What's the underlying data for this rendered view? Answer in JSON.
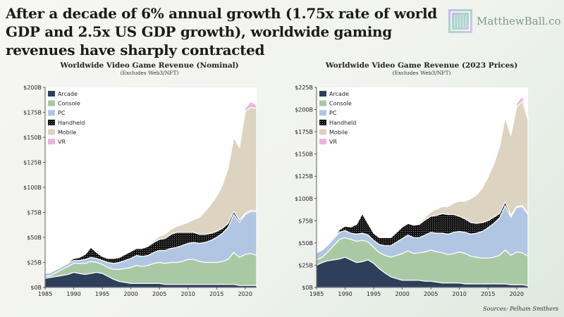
{
  "header": {
    "headline": "After a decade of 6% annual growth (1.75x rate of world GDP and 2.5x US GDP growth), worldwide gaming revenues have sharply contracted",
    "brand": "MatthewBall.co"
  },
  "source": "Sources: Pelham Smithers",
  "colors": {
    "Arcade": "#2e3f5c",
    "Console": "#a9c9a4",
    "PC": "#b1c6e2",
    "Handheld": "#111111",
    "Mobile": "#ddd3c1",
    "VR": "#e9b6e2"
  },
  "chart_data": [
    {
      "type": "area",
      "stacked": true,
      "title": "Worldwide Video Game Revenue (Nominal)",
      "subtitle": "(Excludes Web3/NFT)",
      "x": [
        1985,
        1986,
        1987,
        1988,
        1989,
        1990,
        1991,
        1992,
        1993,
        1994,
        1995,
        1996,
        1997,
        1998,
        1999,
        2000,
        2001,
        2002,
        2003,
        2004,
        2005,
        2006,
        2007,
        2008,
        2009,
        2010,
        2011,
        2012,
        2013,
        2014,
        2015,
        2016,
        2017,
        2018,
        2019,
        2020,
        2021,
        2022
      ],
      "xlim": [
        1985,
        2022
      ],
      "xticks": [
        "1985",
        "1990",
        "1995",
        "2000",
        "2005",
        "2010",
        "2015",
        "2020"
      ],
      "ylim": [
        0,
        200
      ],
      "yticks": [
        "$0B",
        "$25B",
        "$50B",
        "$75B",
        "$100B",
        "$125B",
        "$150B",
        "$175B",
        "$200B"
      ],
      "legend_position": "top-left",
      "series": [
        {
          "name": "Arcade",
          "values": [
            9,
            10,
            11,
            12,
            13,
            15,
            14,
            13,
            14,
            15,
            14,
            11,
            8,
            6,
            5,
            4,
            4,
            4,
            4,
            4,
            4,
            3,
            3,
            3,
            3,
            3,
            3,
            3,
            3,
            3,
            3,
            3,
            3,
            3,
            2,
            2,
            2,
            2
          ]
        },
        {
          "name": "Console",
          "values": [
            2,
            2,
            4,
            6,
            8,
            9,
            10,
            11,
            12,
            10,
            9,
            9,
            10,
            12,
            14,
            16,
            18,
            17,
            18,
            20,
            21,
            21,
            22,
            22,
            23,
            25,
            25,
            23,
            22,
            22,
            22,
            23,
            25,
            32,
            28,
            31,
            32,
            30
          ]
        },
        {
          "name": "PC",
          "values": [
            3,
            3,
            3,
            3,
            3,
            3,
            3,
            4,
            4,
            4,
            4,
            5,
            6,
            7,
            8,
            9,
            10,
            10,
            10,
            11,
            12,
            13,
            14,
            15,
            16,
            16,
            17,
            18,
            20,
            22,
            25,
            28,
            32,
            38,
            35,
            40,
            42,
            44
          ]
        },
        {
          "name": "Handheld",
          "values": [
            0,
            0,
            0,
            0,
            1,
            2,
            3,
            5,
            10,
            6,
            4,
            4,
            5,
            5,
            6,
            7,
            7,
            8,
            9,
            10,
            11,
            12,
            14,
            15,
            13,
            11,
            10,
            9,
            8,
            7,
            6,
            5,
            4,
            3,
            2,
            1,
            1,
            1
          ]
        },
        {
          "name": "Mobile",
          "values": [
            0,
            0,
            0,
            0,
            0,
            0,
            0,
            0,
            0,
            0,
            0,
            0,
            0,
            0,
            0,
            0,
            0,
            0,
            1,
            2,
            3,
            4,
            5,
            6,
            8,
            10,
            13,
            17,
            23,
            29,
            35,
            43,
            55,
            74,
            73,
            102,
            103,
            102
          ]
        },
        {
          "name": "VR",
          "values": [
            0,
            0,
            0,
            0,
            0,
            0,
            0,
            0,
            0,
            0,
            0,
            0,
            0,
            0,
            0,
            0,
            0,
            0,
            0,
            0,
            0,
            0,
            0,
            0,
            0,
            0,
            0,
            0,
            0,
            0,
            0,
            0,
            1,
            1,
            1,
            3,
            6,
            3
          ]
        }
      ]
    },
    {
      "type": "area",
      "stacked": true,
      "title": "Worldwide Video Game Revenue (2023 Prices)",
      "subtitle": "(Excludes Web3/NFT)",
      "x": [
        1985,
        1986,
        1987,
        1988,
        1989,
        1990,
        1991,
        1992,
        1993,
        1994,
        1995,
        1996,
        1997,
        1998,
        1999,
        2000,
        2001,
        2002,
        2003,
        2004,
        2005,
        2006,
        2007,
        2008,
        2009,
        2010,
        2011,
        2012,
        2013,
        2014,
        2015,
        2016,
        2017,
        2018,
        2019,
        2020,
        2021,
        2022
      ],
      "xlim": [
        1985,
        2022
      ],
      "xticks": [
        "1985",
        "1990",
        "1995",
        "2000",
        "2005",
        "2010",
        "2015",
        "2020"
      ],
      "ylim": [
        0,
        225
      ],
      "yticks": [
        "$0B",
        "$25B",
        "$50B",
        "$75B",
        "$100B",
        "$125B",
        "$150B",
        "$175B",
        "$200B",
        "$225B"
      ],
      "legend_position": "top-left",
      "series": [
        {
          "name": "Arcade",
          "values": [
            25,
            28,
            30,
            31,
            32,
            34,
            31,
            28,
            29,
            31,
            27,
            21,
            16,
            12,
            10,
            8,
            8,
            8,
            8,
            7,
            7,
            6,
            5,
            5,
            5,
            5,
            4,
            4,
            4,
            4,
            4,
            4,
            4,
            4,
            3,
            3,
            3,
            2
          ]
        },
        {
          "name": "Console",
          "values": [
            6,
            6,
            10,
            16,
            22,
            22,
            23,
            24,
            24,
            20,
            18,
            18,
            20,
            22,
            26,
            30,
            33,
            30,
            31,
            33,
            35,
            34,
            34,
            32,
            33,
            35,
            34,
            31,
            30,
            29,
            29,
            30,
            32,
            38,
            33,
            37,
            36,
            33
          ]
        },
        {
          "name": "PC",
          "values": [
            8,
            8,
            8,
            8,
            8,
            8,
            7,
            8,
            8,
            8,
            8,
            9,
            11,
            13,
            15,
            17,
            18,
            18,
            17,
            19,
            20,
            21,
            22,
            23,
            24,
            23,
            24,
            25,
            27,
            30,
            34,
            38,
            42,
            50,
            43,
            50,
            52,
            47
          ]
        },
        {
          "name": "Handheld",
          "values": [
            0,
            0,
            0,
            0,
            3,
            5,
            7,
            11,
            22,
            13,
            8,
            8,
            9,
            9,
            11,
            13,
            13,
            14,
            15,
            17,
            18,
            20,
            22,
            22,
            20,
            17,
            15,
            13,
            11,
            10,
            8,
            7,
            5,
            4,
            2,
            1,
            1,
            1
          ]
        },
        {
          "name": "Mobile",
          "values": [
            0,
            0,
            0,
            0,
            0,
            0,
            0,
            0,
            0,
            0,
            0,
            0,
            0,
            0,
            0,
            0,
            0,
            0,
            2,
            3,
            5,
            7,
            8,
            9,
            13,
            17,
            20,
            27,
            32,
            39,
            49,
            60,
            75,
            95,
            90,
            112,
            117,
            105
          ]
        },
        {
          "name": "VR",
          "values": [
            0,
            0,
            0,
            0,
            0,
            0,
            0,
            0,
            0,
            0,
            0,
            0,
            0,
            0,
            0,
            0,
            0,
            0,
            0,
            0,
            0,
            0,
            0,
            0,
            0,
            0,
            0,
            0,
            0,
            0,
            0,
            0,
            1,
            1,
            1,
            4,
            6,
            3
          ]
        }
      ]
    }
  ]
}
